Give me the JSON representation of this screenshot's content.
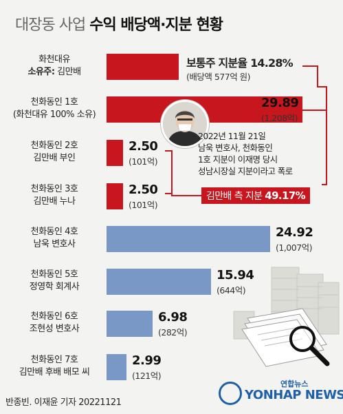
{
  "header": {
    "title_prefix": "대장동 사업",
    "title_main": "수익 배당액·지분 현황"
  },
  "labels": [
    {
      "line1": "화천대유",
      "line2_bold": "소유주:",
      "line2": " 김만배"
    },
    {
      "line1": "천화동인 1호",
      "line2": "(화천대유 100% 소유)"
    },
    {
      "line1": "천화동인 2호",
      "line2": "김만배 부인"
    },
    {
      "line1": "천화동인 3호",
      "line2": "김만배 누나"
    },
    {
      "line1": "천화동인 4호",
      "line2": "남욱 변호사"
    },
    {
      "line1": "천화동인 5호",
      "line2": "정영학 회계사"
    },
    {
      "line1": "천화동인 6호",
      "line2": "조현성 변호사"
    },
    {
      "line1": "천화동인 7호",
      "line2": "김만배 후배 배모 씨"
    }
  ],
  "common_stock": {
    "label": "보통주 지분율 ",
    "pct": "14.28%",
    "sub": "(배당액 577억 원)"
  },
  "chart_data": {
    "type": "bar",
    "orientation": "horizontal",
    "title": "대장동 사업 수익 배당액·지분 현황",
    "unit": "%",
    "categories": [
      "화천대유",
      "천화동인 1호",
      "천화동인 2호",
      "천화동인 3호",
      "천화동인 4호",
      "천화동인 5호",
      "천화동인 6호",
      "천화동인 7호"
    ],
    "values": [
      14.28,
      29.89,
      2.5,
      2.5,
      24.92,
      15.94,
      6.98,
      2.99
    ],
    "value_labels": [
      "14.28%",
      "29.89",
      "2.50",
      "2.50",
      "24.92",
      "15.94",
      "6.98",
      "2.99"
    ],
    "dividends": [
      "(배당액 577억 원)",
      "(1,208억)",
      "(101억)",
      "(101억)",
      "(1,007억)",
      "(644억)",
      "(282억)",
      "(121억)"
    ],
    "group_colors": {
      "kim_side": "#c8161e",
      "others": "#7a98c6"
    },
    "groups": [
      "kim_side",
      "kim_side",
      "kim_side",
      "kim_side",
      "others",
      "others",
      "others",
      "others"
    ],
    "group_total_label": "김만배 측 지분",
    "group_total_value": "49.17%"
  },
  "annotation": {
    "lines": [
      "2022년 11월 21일",
      "남욱 변호사, 천화동인",
      "1호 지분이 이재명 당시",
      "성남시장실 지분이라고 폭로"
    ]
  },
  "kim_total": {
    "label": "김만배 측 지분 ",
    "pct": "49.17%"
  },
  "footer": {
    "credit": "반종빈. 이재윤 기자  20221121",
    "brand_kr": "연합뉴스",
    "brand_en": "YONHAP NEWS"
  },
  "colors": {
    "red": "#c8161e",
    "blue": "#7a98c6",
    "bg": "#f3f3f1"
  }
}
